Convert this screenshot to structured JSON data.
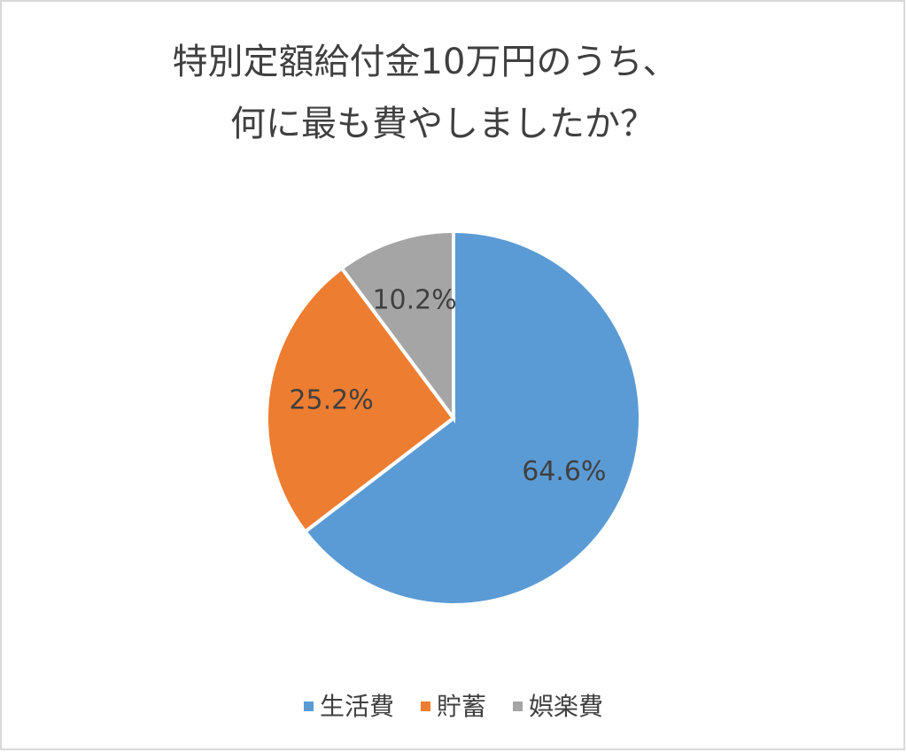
{
  "chart_data": {
    "type": "pie",
    "title": [
      "特別定額給付金10万円のうち、",
      "何に最も費やしましたか？"
    ],
    "categories": [
      "生活費",
      "貯蓄",
      "娯楽費"
    ],
    "values": [
      64.6,
      25.2,
      10.2
    ],
    "value_labels": [
      "64.6%",
      "25.2%",
      "10.2%"
    ],
    "colors": [
      "#5b9bd5",
      "#ed7d31",
      "#a5a5a5"
    ],
    "legend": "bottom"
  }
}
